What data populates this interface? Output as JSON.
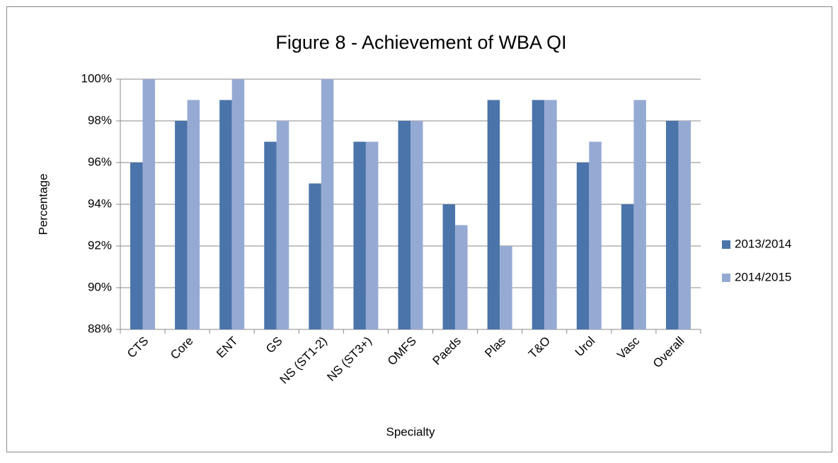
{
  "chart_data": {
    "type": "bar",
    "title": "Figure 8 - Achievement of WBA QI",
    "x_label": "Specialty",
    "y_label": "Percentage",
    "categories": [
      "CTS",
      "Core",
      "ENT",
      "GS",
      "NS (ST1-2)",
      "NS (ST3+)",
      "OMFS",
      "Paeds",
      "Plas",
      "T&O",
      "Urol",
      "Vasc",
      "Overall"
    ],
    "series": [
      {
        "name": "2013/2014",
        "color": "#4a74aa",
        "values": [
          96,
          98,
          99,
          97,
          95,
          97,
          98,
          94,
          99,
          99,
          96,
          94,
          98
        ]
      },
      {
        "name": "2014/2015",
        "color": "#95aad3",
        "values": [
          100,
          99,
          100,
          98,
          100,
          97,
          98,
          93,
          92,
          99,
          97,
          99,
          98
        ]
      }
    ],
    "ylim": [
      88,
      100
    ],
    "yticks": [
      {
        "value": 88,
        "label": "88%"
      },
      {
        "value": 90,
        "label": "90%"
      },
      {
        "value": 92,
        "label": "92%"
      },
      {
        "value": 94,
        "label": "94%"
      },
      {
        "value": 96,
        "label": "96%"
      },
      {
        "value": 98,
        "label": "98%"
      },
      {
        "value": 100,
        "label": "100%"
      }
    ],
    "grid": true,
    "legend": "right"
  }
}
